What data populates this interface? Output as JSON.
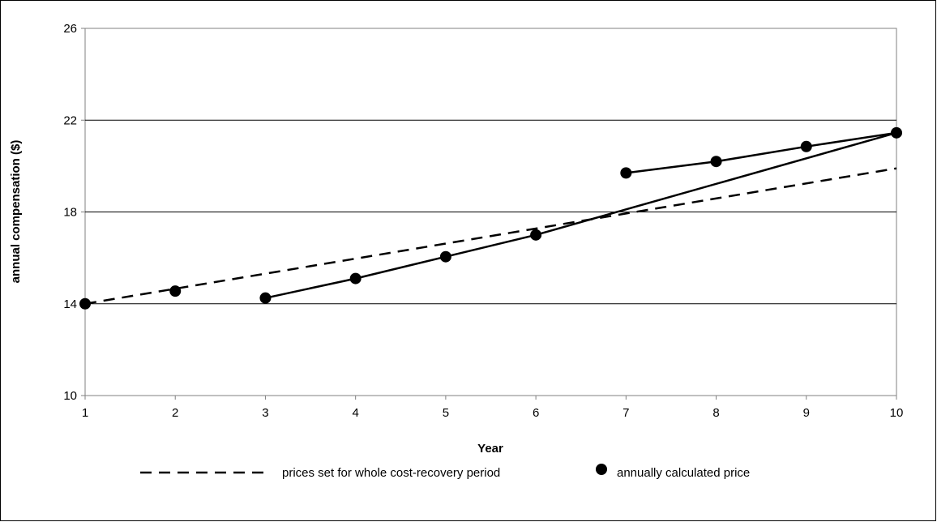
{
  "chart_data": {
    "type": "line",
    "title": "",
    "xlabel": "Year",
    "ylabel": "annual compensation ($)",
    "xlim": [
      1,
      10
    ],
    "ylim": [
      10,
      26
    ],
    "x_ticks": [
      "1",
      "2",
      "3",
      "4",
      "5",
      "6",
      "7",
      "8",
      "9",
      "10"
    ],
    "y_ticks": [
      "10",
      "14",
      "18",
      "22",
      "26"
    ],
    "grid": "horizontal",
    "legend_position": "bottom",
    "series": [
      {
        "name": "prices set for whole cost-recovery period",
        "style": "dashed",
        "color": "#000000",
        "points": [
          [
            1,
            14.0
          ],
          [
            10,
            19.9
          ]
        ]
      },
      {
        "name": "annually calculated price",
        "style": "markers",
        "color": "#000000",
        "points": [
          [
            1,
            14.0
          ],
          [
            2,
            14.55
          ],
          [
            3,
            14.25
          ],
          [
            4,
            15.1
          ],
          [
            5,
            16.05
          ],
          [
            6,
            17.0
          ],
          [
            7,
            19.7
          ],
          [
            8,
            20.2
          ],
          [
            9,
            20.85
          ],
          [
            10,
            21.45
          ]
        ]
      }
    ],
    "segments": [
      [
        [
          3,
          14.25
        ],
        [
          4,
          15.1
        ],
        [
          5,
          16.05
        ],
        [
          6,
          17.0
        ],
        [
          10,
          21.45
        ]
      ],
      [
        [
          7,
          19.7
        ],
        [
          8,
          20.2
        ],
        [
          9,
          20.85
        ],
        [
          10,
          21.45
        ]
      ]
    ]
  }
}
